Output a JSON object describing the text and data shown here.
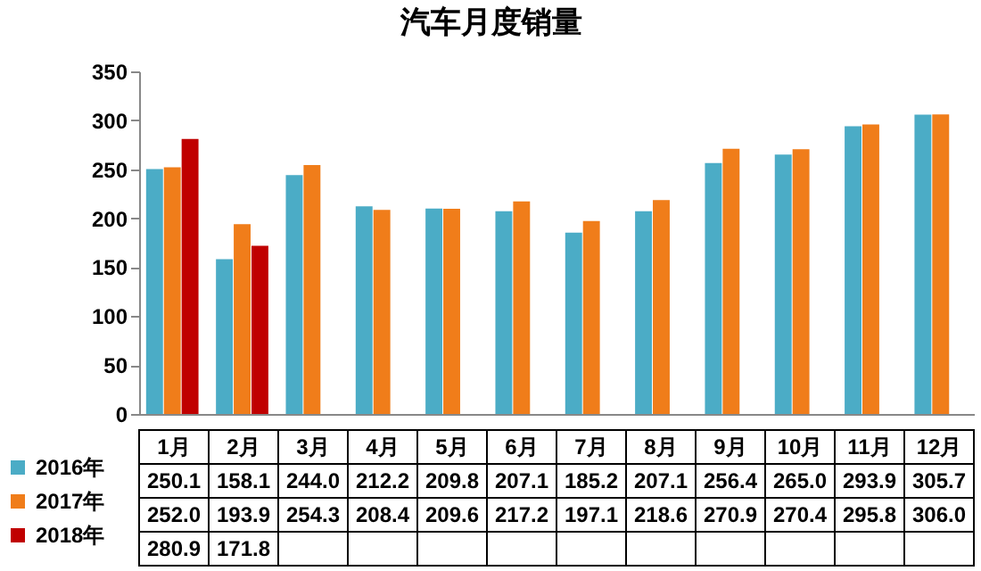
{
  "chart_data": {
    "type": "bar",
    "title": "汽车月度销量",
    "categories": [
      "1月",
      "2月",
      "3月",
      "4月",
      "5月",
      "6月",
      "7月",
      "8月",
      "9月",
      "10月",
      "11月",
      "12月"
    ],
    "series": [
      {
        "name": "2016年",
        "color": "#4bacc6",
        "values": [
          250.1,
          158.1,
          244.0,
          212.2,
          209.8,
          207.1,
          185.2,
          207.1,
          256.4,
          265.0,
          293.9,
          305.7
        ],
        "value_labels": [
          "250.1",
          "158.1",
          "244.0",
          "212.2",
          "209.8",
          "207.1",
          "185.2",
          "207.1",
          "256.4",
          "265.0",
          "293.9",
          "305.7"
        ]
      },
      {
        "name": "2017年",
        "color": "#f07d1a",
        "values": [
          252.0,
          193.9,
          254.3,
          208.4,
          209.6,
          217.2,
          197.1,
          218.6,
          270.9,
          270.4,
          295.8,
          306.0
        ],
        "value_labels": [
          "252.0",
          "193.9",
          "254.3",
          "208.4",
          "209.6",
          "217.2",
          "197.1",
          "218.6",
          "270.9",
          "270.4",
          "295.8",
          "306.0"
        ]
      },
      {
        "name": "2018年",
        "color": "#c00000",
        "values": [
          280.9,
          171.8,
          null,
          null,
          null,
          null,
          null,
          null,
          null,
          null,
          null,
          null
        ],
        "value_labels": [
          "280.9",
          "171.8",
          null,
          null,
          null,
          null,
          null,
          null,
          null,
          null,
          null,
          null
        ]
      }
    ],
    "ylim": [
      0,
      350
    ],
    "yticks": [
      0,
      50,
      100,
      150,
      200,
      250,
      300,
      350
    ],
    "grid": false,
    "legend": "bottom left"
  }
}
